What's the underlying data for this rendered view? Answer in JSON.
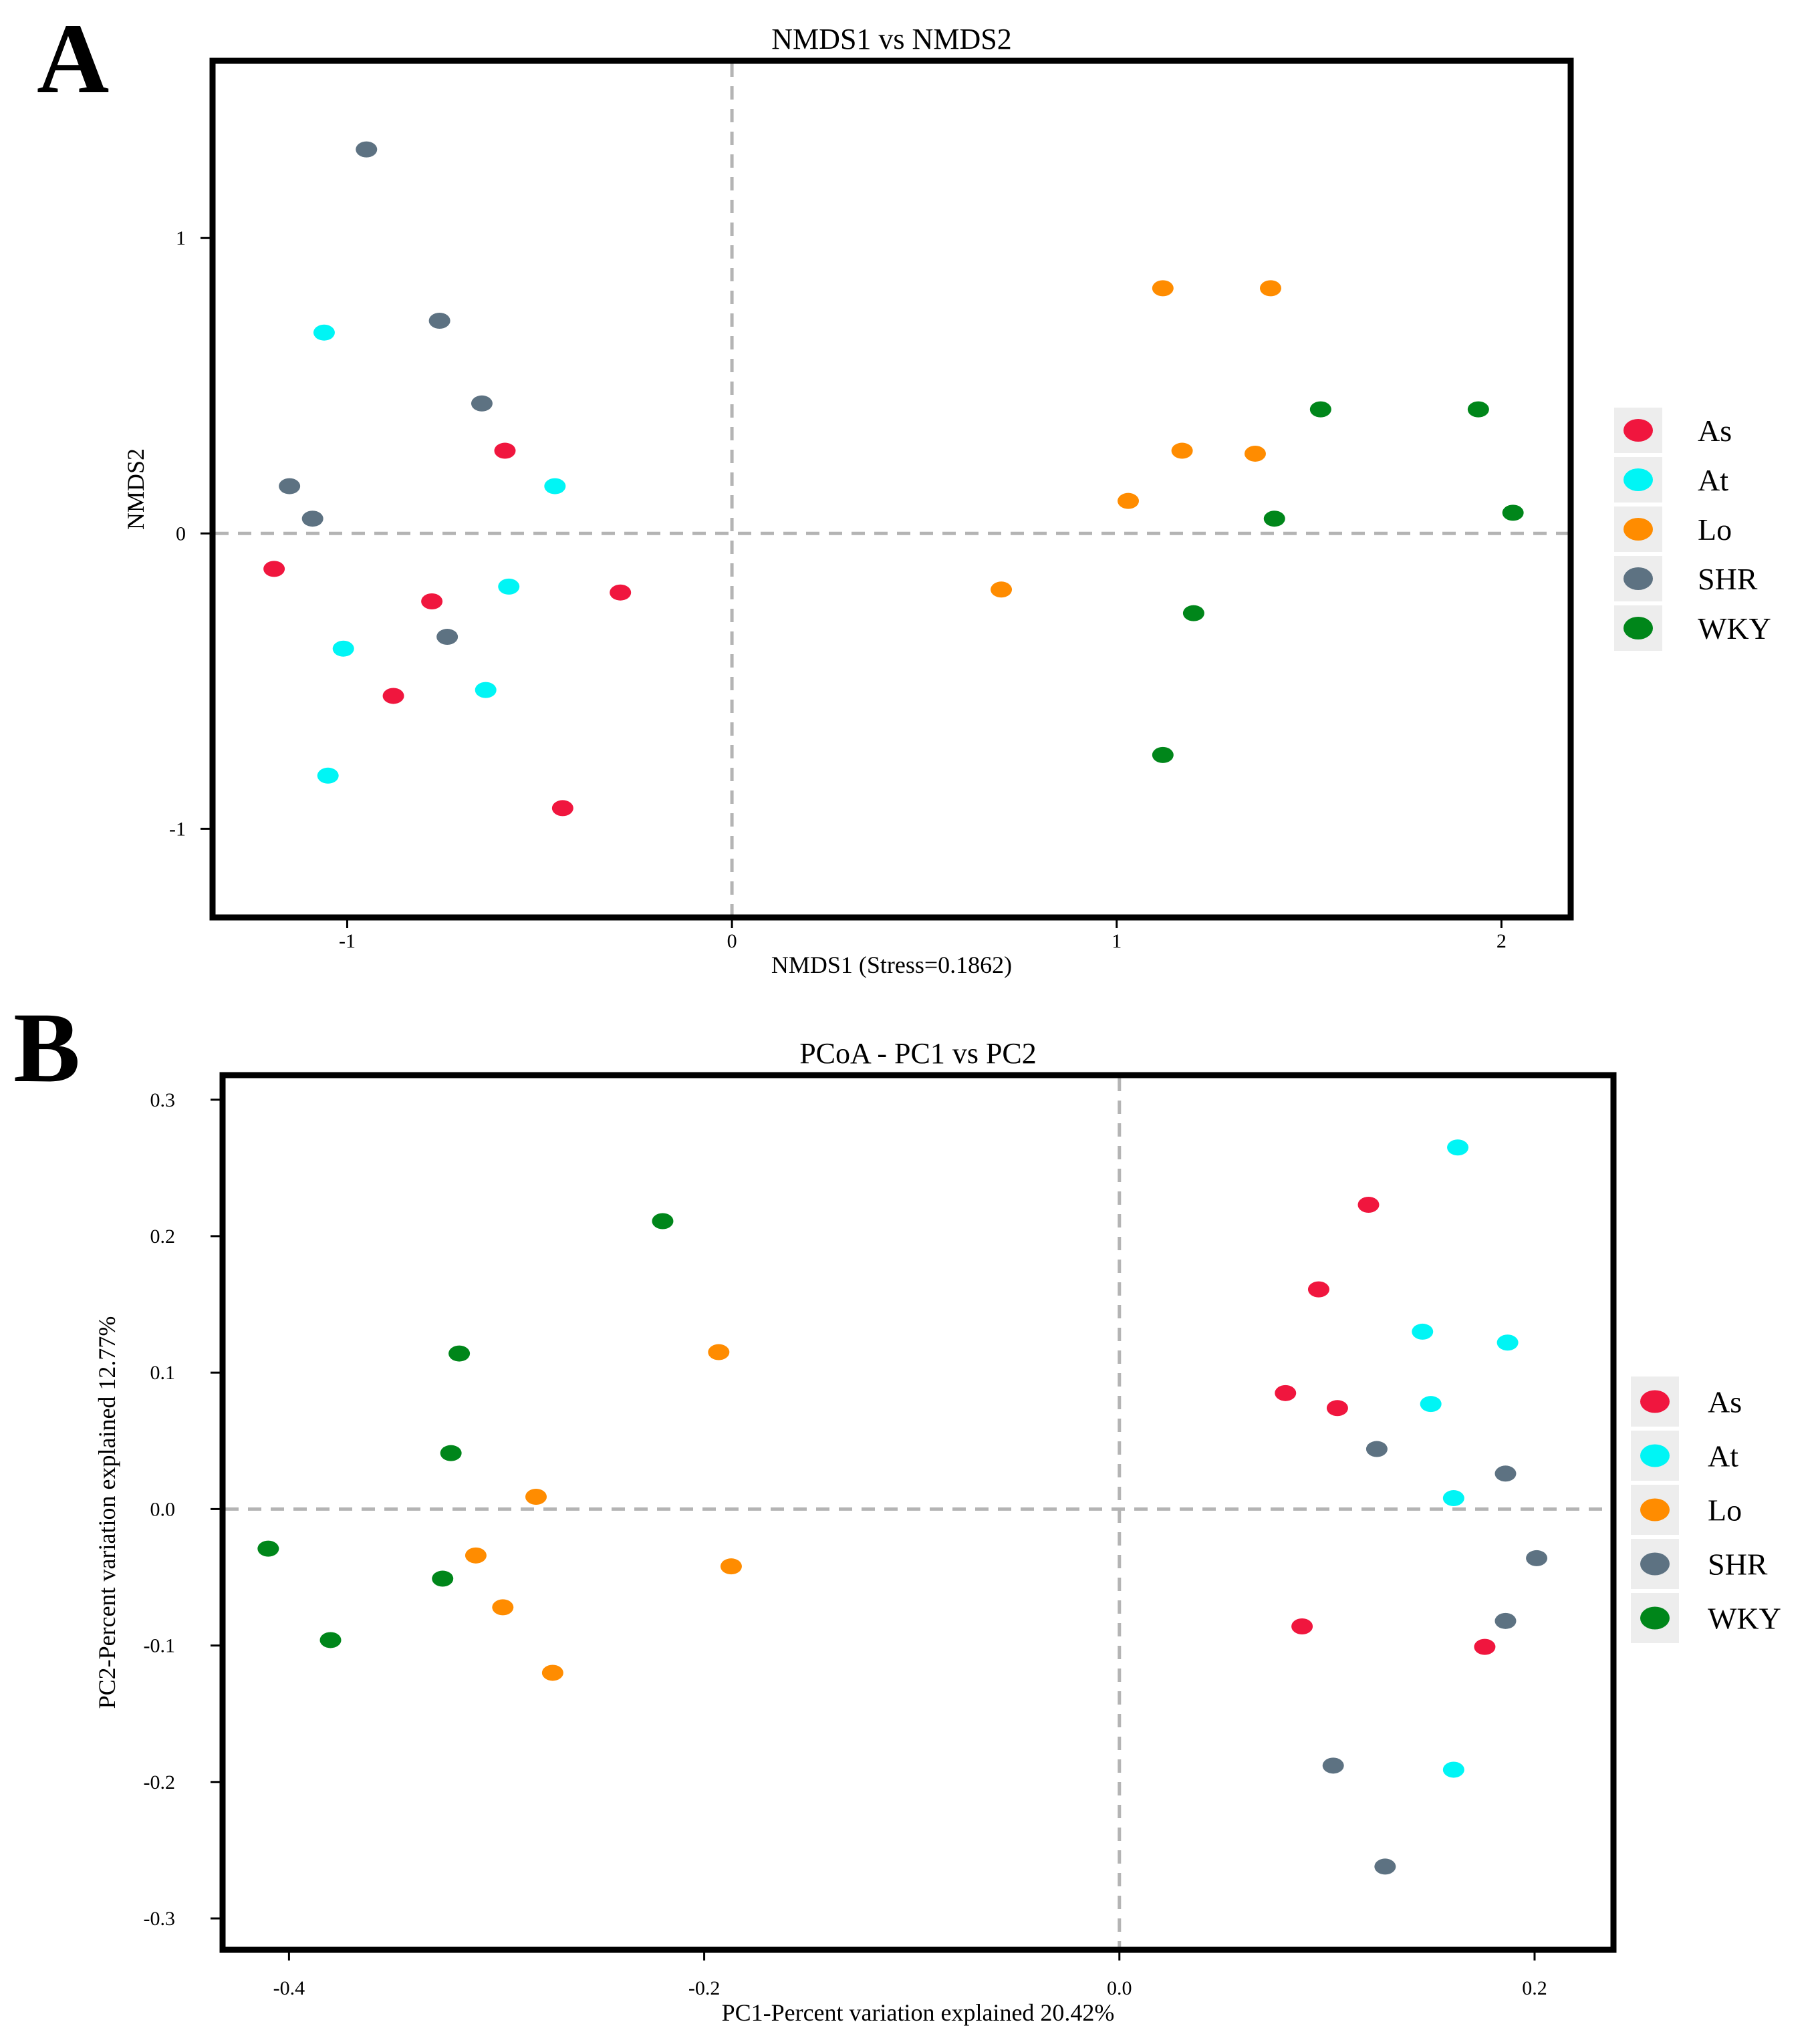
{
  "chart_data": [
    {
      "panel": "A",
      "type": "scatter",
      "title": "NMDS1 vs NMDS2",
      "xlabel": "NMDS1 (Stress=0.1862)",
      "ylabel": "NMDS2",
      "xlim": [
        -1.35,
        2.18
      ],
      "ylim": [
        -1.3,
        1.6
      ],
      "xticks": [
        -1,
        0,
        1,
        2
      ],
      "xtick_labels": [
        "-1",
        "0",
        "1",
        "2"
      ],
      "yticks": [
        -1,
        0,
        1
      ],
      "ytick_labels": [
        "-1",
        "0",
        "1"
      ],
      "reference_lines": {
        "x": 0,
        "y": 0
      },
      "legend_position": "right",
      "series": [
        {
          "name": "As",
          "color": "#f0163e",
          "points": [
            [
              -1.19,
              -0.12
            ],
            [
              -0.59,
              0.28
            ],
            [
              -0.78,
              -0.23
            ],
            [
              -0.29,
              -0.2
            ],
            [
              -0.88,
              -0.55
            ],
            [
              -0.44,
              -0.93
            ]
          ]
        },
        {
          "name": "At",
          "color": "#00f5f5",
          "points": [
            [
              -1.06,
              0.68
            ],
            [
              -0.46,
              0.16
            ],
            [
              -0.58,
              -0.18
            ],
            [
              -1.01,
              -0.39
            ],
            [
              -0.64,
              -0.53
            ],
            [
              -1.05,
              -0.82
            ]
          ]
        },
        {
          "name": "Lo",
          "color": "#ff8c00",
          "points": [
            [
              1.12,
              0.83
            ],
            [
              1.4,
              0.83
            ],
            [
              1.17,
              0.28
            ],
            [
              1.36,
              0.27
            ],
            [
              1.03,
              0.11
            ],
            [
              0.7,
              -0.19
            ]
          ]
        },
        {
          "name": "SHR",
          "color": "#5d7282",
          "points": [
            [
              -0.95,
              1.3
            ],
            [
              -0.76,
              0.72
            ],
            [
              -0.65,
              0.44
            ],
            [
              -1.15,
              0.16
            ],
            [
              -1.09,
              0.05
            ],
            [
              -0.74,
              -0.35
            ]
          ]
        },
        {
          "name": "WKY",
          "color": "#00861a",
          "points": [
            [
              1.53,
              0.42
            ],
            [
              1.94,
              0.42
            ],
            [
              1.41,
              0.05
            ],
            [
              2.03,
              0.07
            ],
            [
              1.2,
              -0.27
            ],
            [
              1.12,
              -0.75
            ]
          ]
        }
      ]
    },
    {
      "panel": "B",
      "type": "scatter",
      "title": "PCoA - PC1 vs PC2",
      "xlabel": "PC1-Percent variation explained 20.42%",
      "ylabel": "PC2-Percent variation explained 12.77%",
      "xlim": [
        -0.432,
        0.238
      ],
      "ylim": [
        -0.323,
        0.318
      ],
      "xticks": [
        -0.4,
        -0.2,
        0.0,
        0.2
      ],
      "xtick_labels": [
        "-0.4",
        "-0.2",
        "0.0",
        "0.2"
      ],
      "yticks": [
        0.3,
        0.2,
        0.1,
        0.0,
        -0.1,
        -0.2,
        -0.3
      ],
      "ytick_labels": [
        "0.3",
        "0.2",
        "0.1",
        "0.0",
        "-0.1",
        "-0.2",
        "-0.3"
      ],
      "reference_lines": {
        "x": 0,
        "y": 0
      },
      "legend_position": "right",
      "series": [
        {
          "name": "As",
          "color": "#f0163e",
          "points": [
            [
              0.12,
              0.223
            ],
            [
              0.096,
              0.161
            ],
            [
              0.08,
              0.085
            ],
            [
              0.105,
              0.074
            ],
            [
              0.088,
              -0.086
            ],
            [
              0.176,
              -0.101
            ]
          ]
        },
        {
          "name": "At",
          "color": "#00f5f5",
          "points": [
            [
              0.163,
              0.265
            ],
            [
              0.146,
              0.13
            ],
            [
              0.187,
              0.122
            ],
            [
              0.15,
              0.077
            ],
            [
              0.161,
              0.008
            ],
            [
              0.161,
              -0.191
            ]
          ]
        },
        {
          "name": "Lo",
          "color": "#ff8c00",
          "points": [
            [
              -0.193,
              0.115
            ],
            [
              -0.281,
              0.009
            ],
            [
              -0.31,
              -0.034
            ],
            [
              -0.297,
              -0.072
            ],
            [
              -0.187,
              -0.042
            ],
            [
              -0.273,
              -0.12
            ]
          ]
        },
        {
          "name": "SHR",
          "color": "#5d7282",
          "points": [
            [
              0.124,
              0.044
            ],
            [
              0.186,
              0.026
            ],
            [
              0.201,
              -0.036
            ],
            [
              0.186,
              -0.082
            ],
            [
              0.103,
              -0.188
            ],
            [
              0.128,
              -0.262
            ]
          ]
        },
        {
          "name": "WKY",
          "color": "#00861a",
          "points": [
            [
              -0.22,
              0.211
            ],
            [
              -0.318,
              0.114
            ],
            [
              -0.322,
              0.041
            ],
            [
              -0.41,
              -0.029
            ],
            [
              -0.326,
              -0.051
            ],
            [
              -0.38,
              -0.096
            ]
          ]
        }
      ]
    }
  ]
}
